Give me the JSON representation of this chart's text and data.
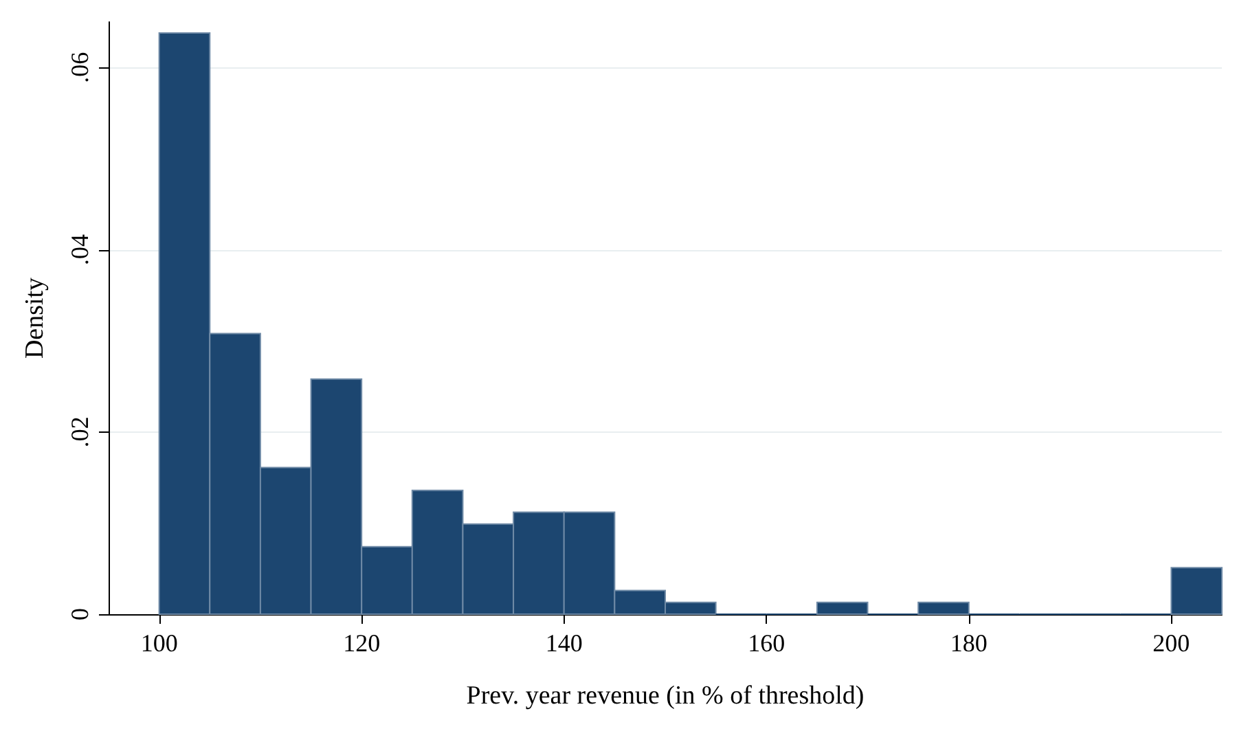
{
  "chart_data": {
    "type": "histogram",
    "xlabel": "Prev. year revenue (in % of threshold)",
    "ylabel": "Density",
    "bins": [
      100,
      105,
      110,
      115,
      120,
      125,
      130,
      135,
      140,
      145,
      150,
      155,
      160,
      165,
      170,
      175,
      180,
      185,
      190,
      195,
      200,
      205
    ],
    "values": [
      0.0638,
      0.0308,
      0.0161,
      0.0258,
      0.0074,
      0.0136,
      0.0099,
      0.0112,
      0.0112,
      0.0026,
      0.0013,
      0,
      0,
      0.0013,
      0,
      0.0013,
      0,
      0,
      0,
      0,
      0.0051
    ],
    "color": "#1c4670",
    "xlim": [
      95,
      205
    ],
    "xticks": [
      100,
      120,
      140,
      160,
      180,
      200
    ],
    "ylim": [
      0,
      0.065
    ],
    "yticks": [
      {
        "value": 0,
        "label": "0"
      },
      {
        "value": 0.02,
        "label": ".02"
      },
      {
        "value": 0.04,
        "label": ".04"
      },
      {
        "value": 0.06,
        "label": ".06"
      }
    ],
    "grid": "y"
  }
}
